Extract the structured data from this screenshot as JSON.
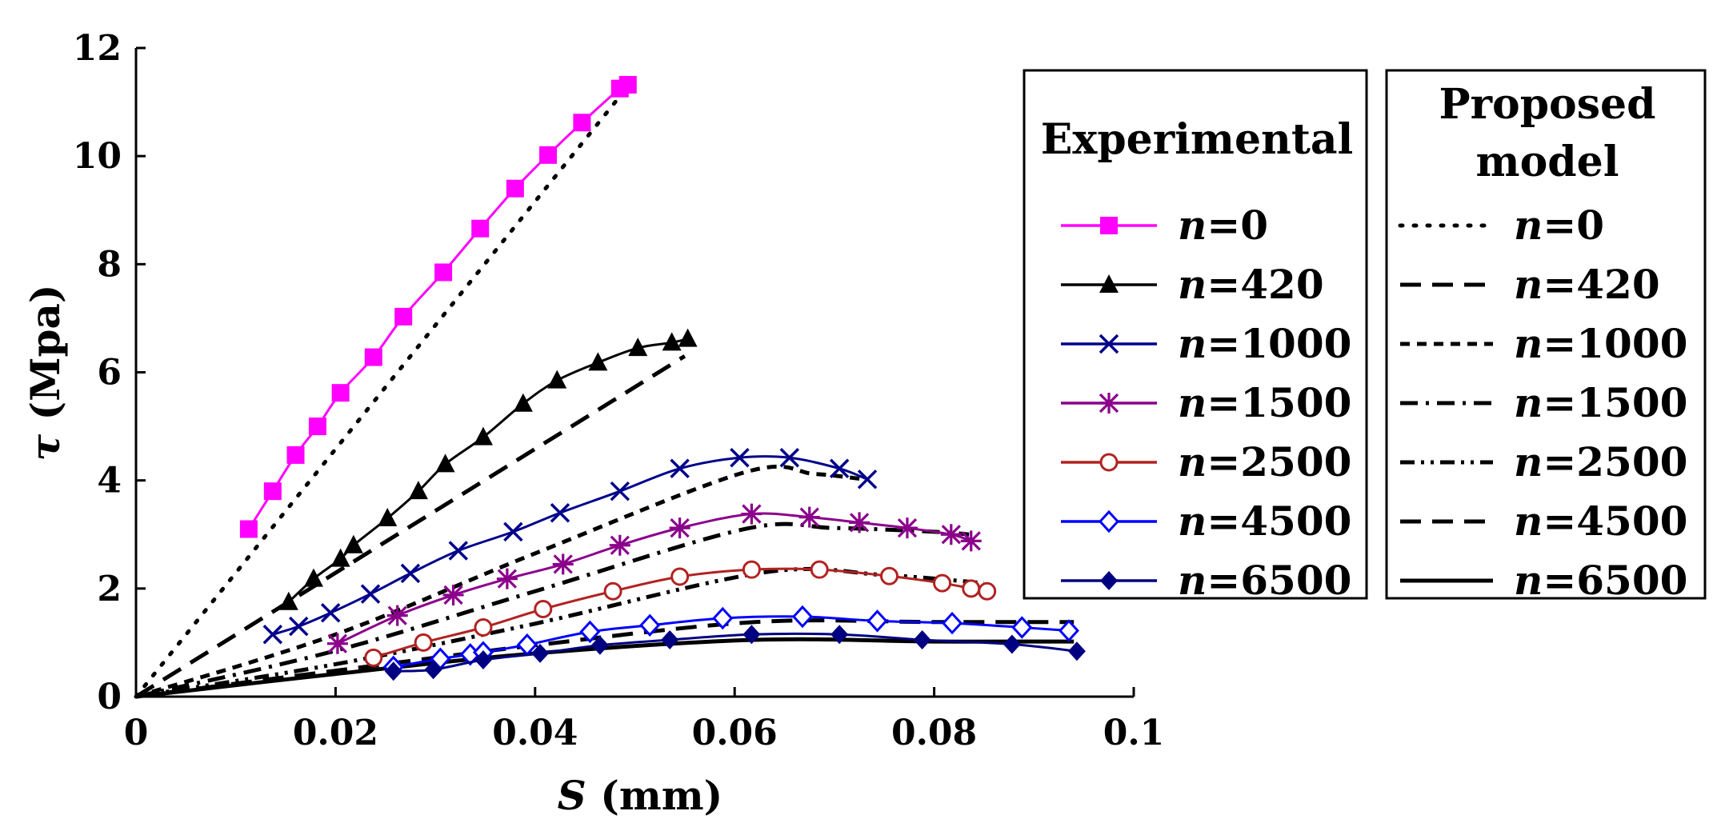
{
  "chart_data": {
    "type": "line",
    "xlabel": {
      "italic": "S",
      "rest": " (mm)"
    },
    "ylabel": {
      "italic": "τ",
      "rest": " (Mpa)"
    },
    "xlim": [
      0,
      0.1
    ],
    "ylim": [
      0,
      12
    ],
    "x_ticks": [
      "0",
      "0.02",
      "0.04",
      "0.06",
      "0.08",
      "0.1"
    ],
    "y_ticks": [
      "0",
      "2",
      "4",
      "6",
      "8",
      "10",
      "12"
    ],
    "grid": false,
    "legend_experimental": {
      "title": "Experimental",
      "entries": [
        "n=0",
        "n=420",
        "n=1000",
        "n=1500",
        "n=2500",
        "n=4500",
        "n=6500"
      ]
    },
    "legend_model": {
      "title_lines": [
        "Proposed",
        "model"
      ],
      "entries": [
        "n=0",
        "n=420",
        "n=1000",
        "n=1500",
        "n=2500",
        "n=4500",
        "n=6500"
      ]
    },
    "experimental": [
      {
        "name": "n=0",
        "color": "#ff00ff",
        "marker": "square",
        "points": [
          [
            0.0113,
            3.1
          ],
          [
            0.0137,
            3.8
          ],
          [
            0.016,
            4.47
          ],
          [
            0.0182,
            5.0
          ],
          [
            0.0205,
            5.62
          ],
          [
            0.0238,
            6.28
          ],
          [
            0.0268,
            7.03
          ],
          [
            0.0308,
            7.85
          ],
          [
            0.0345,
            8.66
          ],
          [
            0.038,
            9.4
          ],
          [
            0.0413,
            10.02
          ],
          [
            0.0447,
            10.62
          ],
          [
            0.0485,
            11.25
          ],
          [
            0.0493,
            11.32
          ]
        ]
      },
      {
        "name": "n=420",
        "color": "#000000",
        "marker": "triangle",
        "points": [
          [
            0.0153,
            1.75
          ],
          [
            0.0178,
            2.18
          ],
          [
            0.0205,
            2.55
          ],
          [
            0.0218,
            2.8
          ],
          [
            0.0252,
            3.3
          ],
          [
            0.0283,
            3.8
          ],
          [
            0.031,
            4.3
          ],
          [
            0.0348,
            4.8
          ],
          [
            0.0388,
            5.42
          ],
          [
            0.0422,
            5.85
          ],
          [
            0.0463,
            6.18
          ],
          [
            0.0503,
            6.45
          ],
          [
            0.0537,
            6.55
          ],
          [
            0.0553,
            6.62
          ]
        ]
      },
      {
        "name": "n=1000",
        "color": "#00008b",
        "marker": "x",
        "points": [
          [
            0.0137,
            1.15
          ],
          [
            0.0163,
            1.3
          ],
          [
            0.0195,
            1.55
          ],
          [
            0.0235,
            1.9
          ],
          [
            0.0275,
            2.28
          ],
          [
            0.0323,
            2.7
          ],
          [
            0.0378,
            3.05
          ],
          [
            0.0425,
            3.4
          ],
          [
            0.0485,
            3.8
          ],
          [
            0.0545,
            4.22
          ],
          [
            0.0605,
            4.42
          ],
          [
            0.0655,
            4.42
          ],
          [
            0.0705,
            4.22
          ],
          [
            0.0733,
            4.02
          ]
        ]
      },
      {
        "name": "n=1500",
        "color": "#8b008b",
        "marker": "asterisk",
        "points": [
          [
            0.0202,
            0.98
          ],
          [
            0.0262,
            1.5
          ],
          [
            0.0318,
            1.88
          ],
          [
            0.0372,
            2.18
          ],
          [
            0.0428,
            2.45
          ],
          [
            0.0485,
            2.8
          ],
          [
            0.0545,
            3.12
          ],
          [
            0.0617,
            3.38
          ],
          [
            0.0675,
            3.32
          ],
          [
            0.0725,
            3.22
          ],
          [
            0.0773,
            3.12
          ],
          [
            0.0817,
            3.0
          ],
          [
            0.0837,
            2.88
          ]
        ]
      },
      {
        "name": "n=2500",
        "color": "#b22222",
        "marker": "circle",
        "points": [
          [
            0.0238,
            0.72
          ],
          [
            0.0288,
            1.0
          ],
          [
            0.0348,
            1.28
          ],
          [
            0.0408,
            1.62
          ],
          [
            0.0478,
            1.95
          ],
          [
            0.0545,
            2.22
          ],
          [
            0.0617,
            2.35
          ],
          [
            0.0685,
            2.35
          ],
          [
            0.0755,
            2.23
          ],
          [
            0.0808,
            2.1
          ],
          [
            0.0837,
            2.0
          ],
          [
            0.0853,
            1.95
          ]
        ]
      },
      {
        "name": "n=4500",
        "color": "#0000ff",
        "marker": "diamond-open",
        "points": [
          [
            0.0258,
            0.55
          ],
          [
            0.0305,
            0.7
          ],
          [
            0.0335,
            0.78
          ],
          [
            0.0348,
            0.82
          ],
          [
            0.0392,
            0.96
          ],
          [
            0.0455,
            1.2
          ],
          [
            0.0515,
            1.32
          ],
          [
            0.0588,
            1.45
          ],
          [
            0.0668,
            1.48
          ],
          [
            0.0743,
            1.4
          ],
          [
            0.0818,
            1.36
          ],
          [
            0.0888,
            1.28
          ],
          [
            0.0935,
            1.22
          ]
        ]
      },
      {
        "name": "n=6500",
        "color": "#000080",
        "marker": "diamond-filled",
        "points": [
          [
            0.0258,
            0.47
          ],
          [
            0.0298,
            0.5
          ],
          [
            0.0348,
            0.68
          ],
          [
            0.0405,
            0.8
          ],
          [
            0.0465,
            0.95
          ],
          [
            0.0535,
            1.05
          ],
          [
            0.0617,
            1.15
          ],
          [
            0.0705,
            1.15
          ],
          [
            0.0788,
            1.05
          ],
          [
            0.0878,
            0.97
          ],
          [
            0.0943,
            0.84
          ]
        ]
      }
    ],
    "model": [
      {
        "name": "n=0",
        "dash": "dot",
        "points": [
          [
            0,
            0
          ],
          [
            0.05,
            11.45
          ]
        ]
      },
      {
        "name": "n=420",
        "dash": "dash",
        "points": [
          [
            0,
            0
          ],
          [
            0.055,
            6.3
          ]
        ]
      },
      {
        "name": "n=1000",
        "dash": "short-dash",
        "points": [
          [
            0,
            0
          ],
          [
            0.02,
            1.15
          ],
          [
            0.04,
            2.65
          ],
          [
            0.061,
            4.15
          ],
          [
            0.068,
            4.12
          ],
          [
            0.073,
            4.02
          ]
        ]
      },
      {
        "name": "n=1500",
        "dash": "dash-dot",
        "points": [
          [
            0,
            0
          ],
          [
            0.02,
            0.85
          ],
          [
            0.04,
            1.95
          ],
          [
            0.061,
            3.1
          ],
          [
            0.07,
            3.12
          ],
          [
            0.08,
            3.05
          ],
          [
            0.0835,
            3.0
          ]
        ]
      },
      {
        "name": "n=2500",
        "dash": "dash-dot-dot",
        "points": [
          [
            0,
            0
          ],
          [
            0.02,
            0.6
          ],
          [
            0.04,
            1.35
          ],
          [
            0.063,
            2.3
          ],
          [
            0.075,
            2.25
          ],
          [
            0.085,
            2.1
          ]
        ]
      },
      {
        "name": "n=4500",
        "dash": "dash",
        "points": [
          [
            0,
            0
          ],
          [
            0.02,
            0.48
          ],
          [
            0.04,
            0.95
          ],
          [
            0.062,
            1.38
          ],
          [
            0.08,
            1.38
          ],
          [
            0.094,
            1.38
          ]
        ]
      },
      {
        "name": "n=6500",
        "dash": "solid",
        "points": [
          [
            0,
            0
          ],
          [
            0.02,
            0.42
          ],
          [
            0.04,
            0.8
          ],
          [
            0.062,
            1.05
          ],
          [
            0.08,
            1.02
          ],
          [
            0.094,
            1.02
          ]
        ]
      }
    ]
  }
}
